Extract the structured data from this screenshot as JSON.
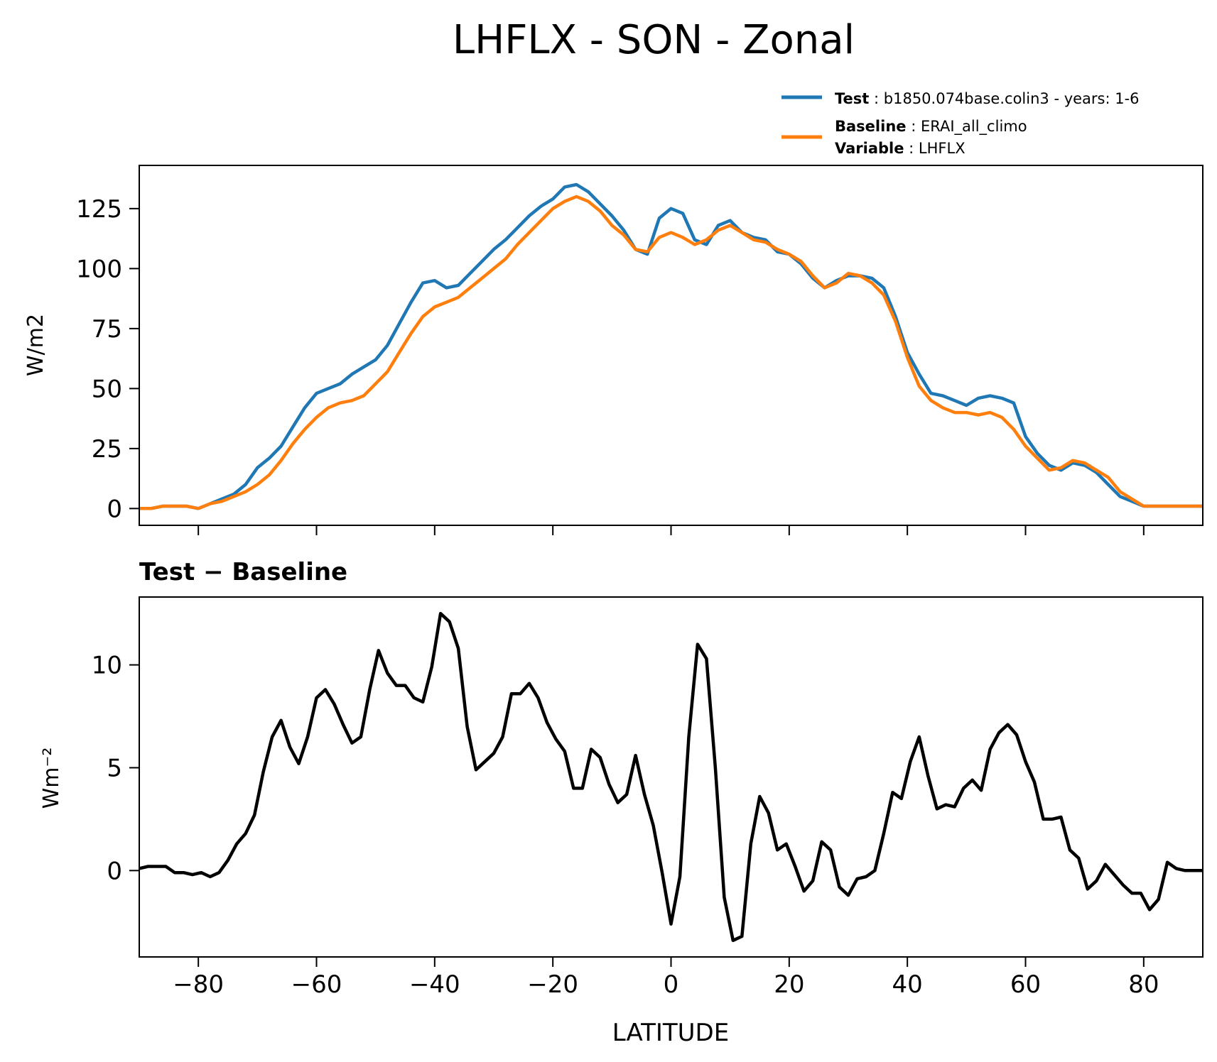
{
  "title": "LHFLX - SON - Zonal",
  "legend": {
    "test_key": "Test",
    "test_value": "b1850.074base.colin3 - years: 1-6",
    "baseline_key": "Baseline",
    "baseline_value": "ERAI_all_climo",
    "variable_key": "Variable",
    "variable_value": "LHFLX"
  },
  "colors": {
    "test": "#1f77b4",
    "baseline": "#ff7f0e",
    "diff": "#000000"
  },
  "chart_data": [
    {
      "type": "line",
      "title": "",
      "xlabel": "",
      "ylabel": "W/m2",
      "xlim": [
        -90,
        90
      ],
      "ylim": [
        -7,
        143
      ],
      "xticks": [
        -80,
        -60,
        -40,
        -20,
        0,
        20,
        40,
        60,
        80
      ],
      "yticks": [
        0,
        25,
        50,
        75,
        100,
        125
      ],
      "grid": false,
      "legend_position": "above-right",
      "x": [
        -90,
        -88,
        -86,
        -84,
        -82,
        -80,
        -78,
        -76,
        -74,
        -72,
        -70,
        -68,
        -66,
        -64,
        -62,
        -60,
        -58,
        -56,
        -54,
        -52,
        -50,
        -48,
        -46,
        -44,
        -42,
        -40,
        -38,
        -36,
        -34,
        -32,
        -30,
        -28,
        -26,
        -24,
        -22,
        -20,
        -18,
        -16,
        -14,
        -12,
        -10,
        -8,
        -6,
        -4,
        -2,
        0,
        2,
        4,
        6,
        8,
        10,
        12,
        14,
        16,
        18,
        20,
        22,
        24,
        26,
        28,
        30,
        32,
        34,
        36,
        38,
        40,
        42,
        44,
        46,
        48,
        50,
        52,
        54,
        56,
        58,
        60,
        62,
        64,
        66,
        68,
        70,
        72,
        74,
        76,
        78,
        80,
        82,
        84,
        86,
        88,
        90
      ],
      "series": [
        {
          "name": "Test",
          "color": "#1f77b4",
          "values": [
            0,
            0,
            1,
            1,
            1,
            0,
            2,
            4,
            6,
            10,
            17,
            21,
            26,
            34,
            42,
            48,
            50,
            52,
            56,
            59,
            62,
            68,
            77,
            86,
            94,
            95,
            92,
            93,
            98,
            103,
            108,
            112,
            117,
            122,
            126,
            129,
            134,
            135,
            132,
            127,
            122,
            116,
            108,
            106,
            121,
            125,
            123,
            112,
            110,
            118,
            120,
            115,
            113,
            112,
            107,
            106,
            102,
            96,
            92,
            95,
            97,
            97,
            96,
            92,
            80,
            65,
            56,
            48,
            47,
            45,
            43,
            46,
            47,
            46,
            44,
            30,
            23,
            18,
            16,
            19,
            18,
            15,
            10,
            5,
            3,
            1,
            1,
            1,
            1,
            1,
            1
          ]
        },
        {
          "name": "Baseline",
          "color": "#ff7f0e",
          "values": [
            0,
            0,
            1,
            1,
            1,
            0,
            2,
            3,
            5,
            7,
            10,
            14,
            20,
            27,
            33,
            38,
            42,
            44,
            45,
            47,
            52,
            57,
            65,
            73,
            80,
            84,
            86,
            88,
            92,
            96,
            100,
            104,
            110,
            115,
            120,
            125,
            128,
            130,
            128,
            124,
            118,
            114,
            108,
            107,
            113,
            115,
            113,
            110,
            112,
            116,
            118,
            115,
            112,
            111,
            108,
            106,
            103,
            97,
            92,
            94,
            98,
            97,
            94,
            89,
            78,
            63,
            51,
            45,
            42,
            40,
            40,
            39,
            40,
            38,
            33,
            26,
            21,
            16,
            17,
            20,
            19,
            16,
            13,
            7,
            4,
            1,
            1,
            1,
            1,
            1,
            1
          ]
        }
      ]
    },
    {
      "type": "line",
      "title": "Test − Baseline",
      "xlabel": "LATITUDE",
      "ylabel": "Wm⁻²",
      "xlim": [
        -90,
        90
      ],
      "ylim": [
        -4.2,
        13.3
      ],
      "xticks": [
        -80,
        -60,
        -40,
        -20,
        0,
        20,
        40,
        60,
        80
      ],
      "xticklabels": [
        "−80",
        "−60",
        "−40",
        "−20",
        "0",
        "20",
        "40",
        "60",
        "80"
      ],
      "yticks": [
        0,
        5,
        10
      ],
      "grid": false,
      "x": [
        -90.0,
        -88.5,
        -87.0,
        -85.5,
        -84.0,
        -82.5,
        -81.0,
        -79.5,
        -78.0,
        -76.5,
        -75.0,
        -73.5,
        -72.0,
        -70.5,
        -69.0,
        -67.5,
        -66.0,
        -64.5,
        -63.0,
        -61.5,
        -60.0,
        -58.5,
        -57.0,
        -55.5,
        -54.0,
        -52.5,
        -51.0,
        -49.5,
        -48.0,
        -46.5,
        -45.0,
        -43.5,
        -42.0,
        -40.5,
        -39.0,
        -37.5,
        -36.0,
        -34.5,
        -33.0,
        -31.5,
        -30.0,
        -28.5,
        -27.0,
        -25.5,
        -24.0,
        -22.5,
        -21.0,
        -19.5,
        -18.0,
        -16.5,
        -15.0,
        -13.5,
        -12.0,
        -10.5,
        -9.0,
        -7.5,
        -6.0,
        -4.5,
        -3.0,
        -1.5,
        0.0,
        1.5,
        3.0,
        4.5,
        6.0,
        7.5,
        9.0,
        10.5,
        12.0,
        13.5,
        15.0,
        16.5,
        18.0,
        19.5,
        21.0,
        22.5,
        24.0,
        25.5,
        27.0,
        28.5,
        30.0,
        31.5,
        33.0,
        34.5,
        36.0,
        37.5,
        39.0,
        40.5,
        42.0,
        43.5,
        45.0,
        46.5,
        48.0,
        49.5,
        51.0,
        52.5,
        54.0,
        55.5,
        57.0,
        58.5,
        60.0,
        61.5,
        63.0,
        64.5,
        66.0,
        67.5,
        69.0,
        70.5,
        72.0,
        73.5,
        75.0,
        76.5,
        78.0,
        79.5,
        81.0,
        82.5,
        84.0,
        85.5,
        87.0,
        88.5,
        90.0
      ],
      "series": [
        {
          "name": "",
          "color": "#000000",
          "values": [
            0.1,
            0.2,
            0.2,
            0.2,
            -0.1,
            -0.1,
            -0.2,
            -0.1,
            -0.3,
            -0.1,
            0.5,
            1.3,
            1.8,
            2.7,
            4.8,
            6.5,
            7.3,
            6.0,
            5.2,
            6.5,
            8.4,
            8.8,
            8.1,
            7.1,
            6.2,
            6.5,
            8.8,
            10.7,
            9.6,
            9.0,
            9.0,
            8.4,
            8.2,
            9.9,
            12.5,
            12.1,
            10.8,
            7.0,
            4.9,
            5.3,
            5.7,
            6.5,
            8.6,
            8.6,
            9.1,
            8.4,
            7.2,
            6.4,
            5.8,
            4.0,
            4.0,
            5.9,
            5.5,
            4.2,
            3.3,
            3.7,
            5.6,
            3.7,
            2.2,
            -0.1,
            -2.6,
            -0.3,
            6.5,
            11.0,
            10.3,
            5.0,
            -1.3,
            -3.4,
            -3.2,
            1.3,
            3.6,
            2.8,
            1.0,
            1.3,
            0.2,
            -1.0,
            -0.5,
            1.4,
            1.0,
            -0.8,
            -1.2,
            -0.4,
            -0.3,
            0.0,
            1.8,
            3.8,
            3.5,
            5.3,
            6.5,
            4.6,
            3.0,
            3.2,
            3.1,
            4.0,
            4.4,
            3.9,
            5.9,
            6.7,
            7.1,
            6.6,
            5.3,
            4.3,
            2.5,
            2.5,
            2.6,
            1.0,
            0.6,
            -0.9,
            -0.5,
            0.3,
            -0.2,
            -0.7,
            -1.1,
            -1.1,
            -1.9,
            -1.4,
            0.4,
            0.1,
            0.0,
            0.0,
            0.0
          ]
        }
      ]
    }
  ]
}
